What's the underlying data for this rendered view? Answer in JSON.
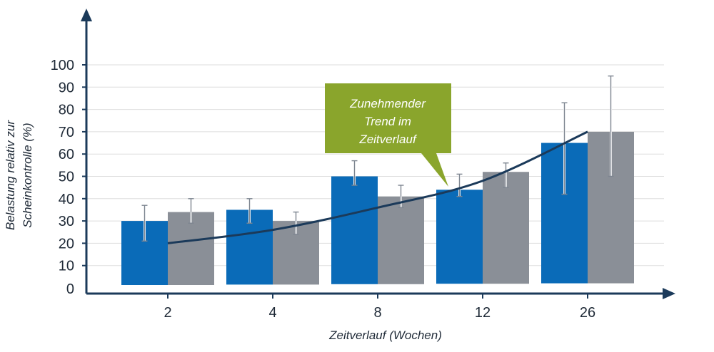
{
  "chart_data": {
    "type": "bar",
    "categories": [
      "2",
      "4",
      "8",
      "12",
      "26"
    ],
    "series": [
      {
        "color": "#0a6bb8",
        "values": [
          30,
          35,
          50,
          44,
          65
        ],
        "error_high": [
          37,
          40,
          57,
          51,
          83
        ],
        "error_low": [
          21,
          29,
          46,
          41,
          42
        ]
      },
      {
        "color": "#8a8f97",
        "values": [
          34,
          30,
          41,
          52,
          70
        ],
        "error_high": [
          40,
          34,
          46,
          56,
          95
        ],
        "error_low": [
          29,
          24,
          36,
          45,
          50
        ]
      }
    ],
    "trend": {
      "color": "#1b3a5a",
      "points": [
        [
          0,
          20
        ],
        [
          1,
          26
        ],
        [
          2,
          36
        ],
        [
          3,
          48
        ],
        [
          4,
          70
        ]
      ]
    },
    "xlabel": "Zeitverlauf (Wochen)",
    "ylabel_lines": [
      "Belastung relativ zur",
      "Scheinkontrolle (%)"
    ],
    "yticks": [
      0,
      10,
      20,
      30,
      40,
      50,
      60,
      70,
      80,
      90,
      100
    ],
    "ylim": [
      0,
      100
    ],
    "grid": true,
    "annotation": {
      "lines": [
        "Zunehmender",
        "Trend im",
        "Zeitverlauf"
      ],
      "color": "#8aa52c"
    }
  }
}
